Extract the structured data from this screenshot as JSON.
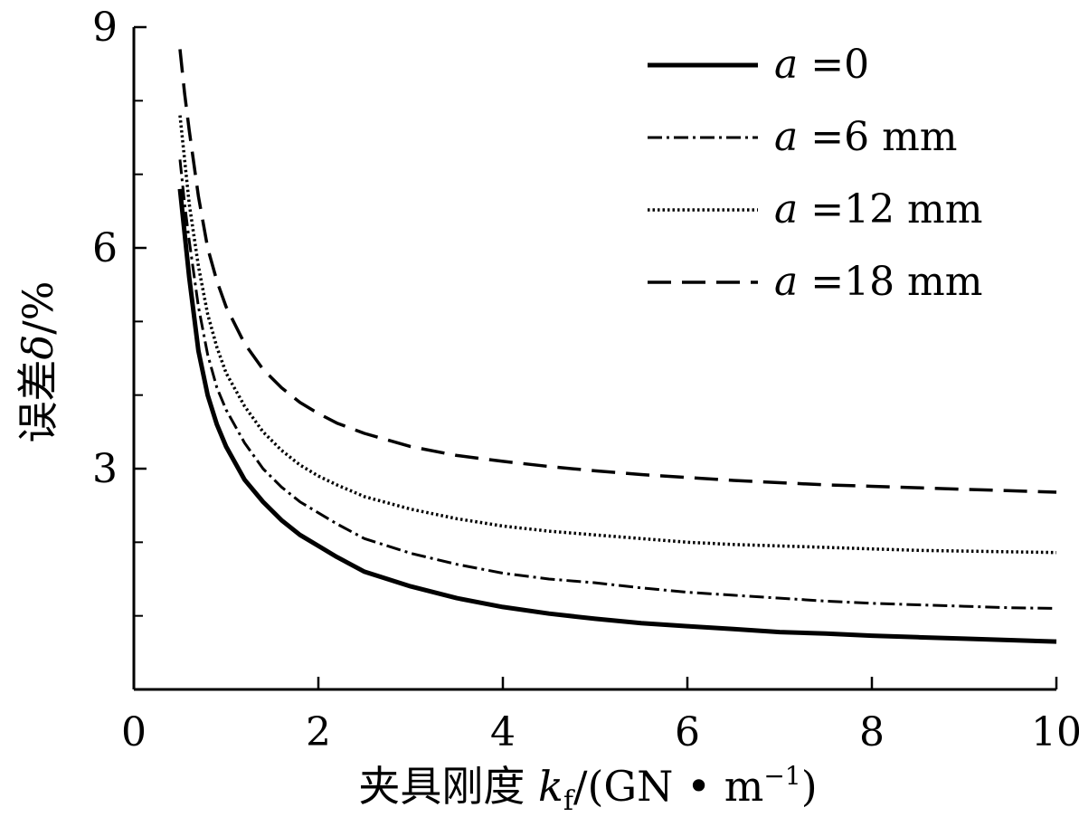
{
  "chart_data": {
    "type": "line",
    "xlabel": {
      "prefix": "夹具刚度 ",
      "var": "k",
      "sub": "f",
      "suffix": "/(GN • m",
      "sup": "−1",
      "close": ")"
    },
    "ylabel": {
      "prefix": "误差",
      "var": "δ",
      "suffix": "/%"
    },
    "xlim": [
      0,
      10
    ],
    "ylim": [
      0,
      9
    ],
    "x_ticks": [
      0,
      2,
      4,
      6,
      8,
      10
    ],
    "x_tick_labels": [
      "0",
      "2",
      "4",
      "6",
      "8",
      "10"
    ],
    "y_ticks": [
      3,
      6,
      9
    ],
    "y_tick_labels": [
      "3",
      "6",
      "9"
    ],
    "y_minor_ticks": [
      1,
      2,
      4,
      5,
      7,
      8
    ],
    "grid": false,
    "legend_position": "top-right",
    "series": [
      {
        "name": "=0",
        "var": "a",
        "style": "solid",
        "x": [
          0.5,
          0.55,
          0.6,
          0.7,
          0.8,
          0.9,
          1.0,
          1.2,
          1.4,
          1.6,
          1.8,
          2.0,
          2.2,
          2.5,
          3.0,
          3.5,
          4.0,
          4.5,
          5.0,
          5.5,
          6.0,
          6.5,
          7.0,
          7.5,
          8.0,
          8.5,
          9.0,
          9.5,
          10.0
        ],
        "y": [
          6.8,
          6.2,
          5.6,
          4.6,
          4.0,
          3.6,
          3.3,
          2.85,
          2.55,
          2.3,
          2.1,
          1.95,
          1.8,
          1.6,
          1.4,
          1.24,
          1.12,
          1.03,
          0.96,
          0.9,
          0.86,
          0.82,
          0.78,
          0.76,
          0.73,
          0.71,
          0.69,
          0.67,
          0.65
        ]
      },
      {
        "name": "=6 mm",
        "var": "a",
        "style": "dashdot",
        "x": [
          0.5,
          0.55,
          0.6,
          0.7,
          0.8,
          0.9,
          1.0,
          1.2,
          1.4,
          1.6,
          1.8,
          2.0,
          2.2,
          2.5,
          3.0,
          3.5,
          4.0,
          4.5,
          5.0,
          5.5,
          6.0,
          6.5,
          7.0,
          7.5,
          8.0,
          8.5,
          9.0,
          9.5,
          10.0
        ],
        "y": [
          7.2,
          6.6,
          6.1,
          5.2,
          4.55,
          4.1,
          3.8,
          3.35,
          3.0,
          2.75,
          2.55,
          2.4,
          2.25,
          2.05,
          1.85,
          1.7,
          1.58,
          1.5,
          1.45,
          1.38,
          1.32,
          1.28,
          1.24,
          1.2,
          1.17,
          1.15,
          1.13,
          1.11,
          1.1
        ]
      },
      {
        "name": "=12 mm",
        "var": "a",
        "style": "dotted",
        "x": [
          0.5,
          0.55,
          0.6,
          0.7,
          0.8,
          0.9,
          1.0,
          1.2,
          1.4,
          1.6,
          1.8,
          2.0,
          2.2,
          2.5,
          3.0,
          3.5,
          4.0,
          4.5,
          5.0,
          5.5,
          6.0,
          6.5,
          7.0,
          7.5,
          8.0,
          8.5,
          9.0,
          9.5,
          10.0
        ],
        "y": [
          7.8,
          7.2,
          6.6,
          5.75,
          5.1,
          4.65,
          4.3,
          3.85,
          3.5,
          3.25,
          3.05,
          2.9,
          2.78,
          2.62,
          2.45,
          2.32,
          2.22,
          2.15,
          2.1,
          2.05,
          2.0,
          1.97,
          1.95,
          1.93,
          1.91,
          1.89,
          1.88,
          1.87,
          1.86
        ]
      },
      {
        "name": "=18 mm",
        "var": "a",
        "style": "dashed",
        "x": [
          0.5,
          0.55,
          0.6,
          0.7,
          0.8,
          0.9,
          1.0,
          1.2,
          1.4,
          1.6,
          1.8,
          2.0,
          2.2,
          2.5,
          3.0,
          3.5,
          4.0,
          4.5,
          5.0,
          5.5,
          6.0,
          6.5,
          7.0,
          7.5,
          8.0,
          8.5,
          9.0,
          9.5,
          10.0
        ],
        "y": [
          8.7,
          8.1,
          7.6,
          6.7,
          6.0,
          5.55,
          5.2,
          4.7,
          4.35,
          4.1,
          3.9,
          3.75,
          3.62,
          3.48,
          3.3,
          3.18,
          3.1,
          3.03,
          2.97,
          2.92,
          2.88,
          2.84,
          2.81,
          2.78,
          2.76,
          2.74,
          2.72,
          2.7,
          2.68
        ]
      }
    ]
  }
}
